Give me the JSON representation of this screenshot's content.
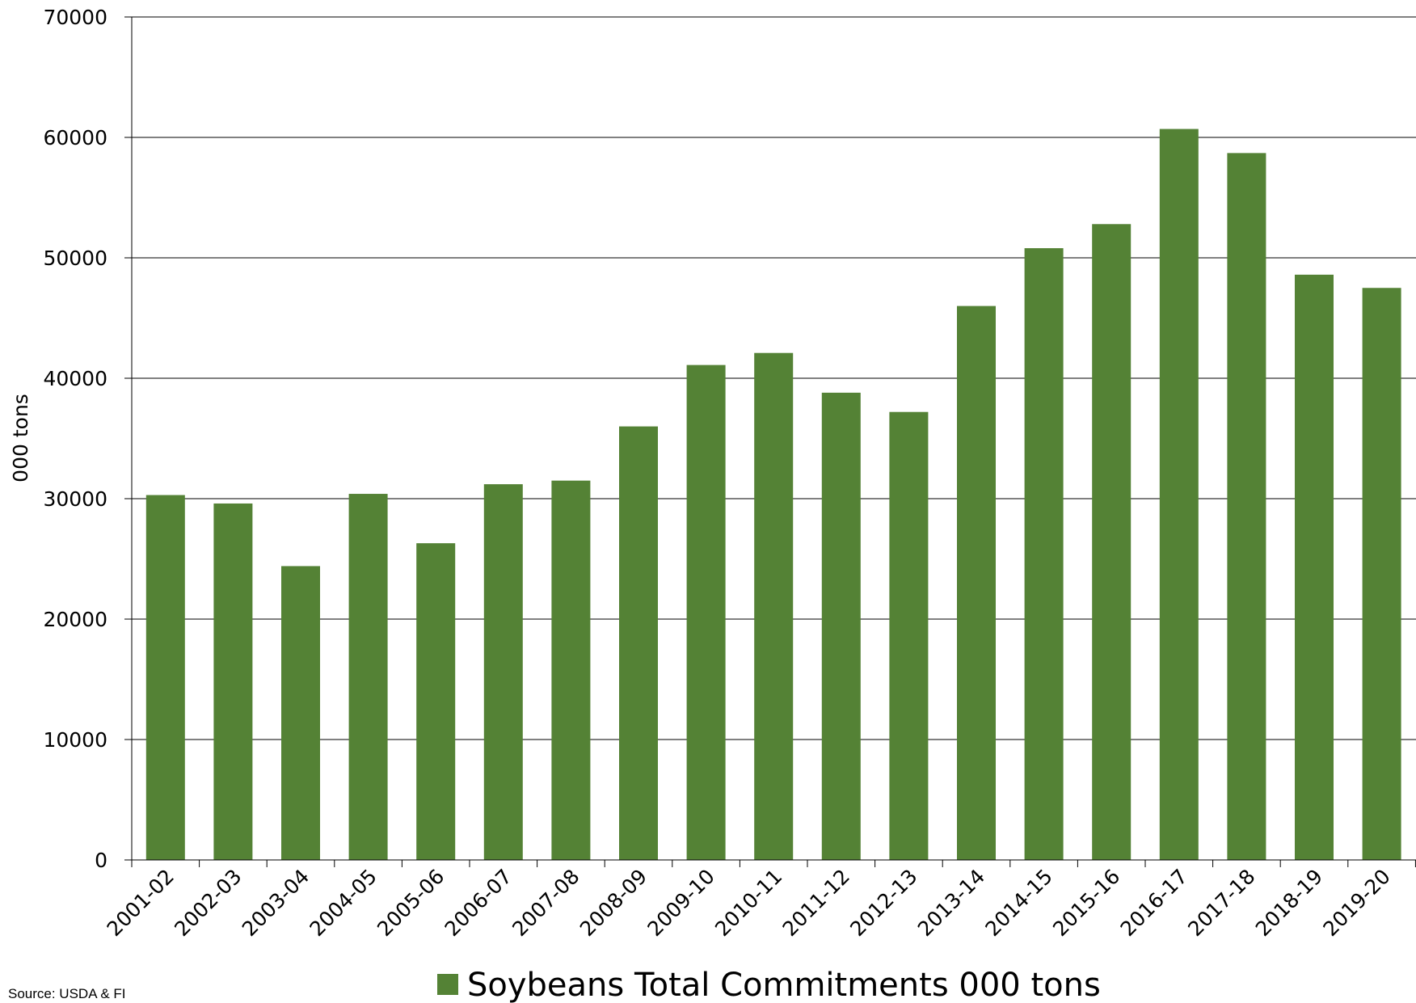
{
  "chart_data": {
    "type": "bar",
    "title": "",
    "xlabel": "",
    "ylabel": "000 tons",
    "ylim": [
      0,
      70000
    ],
    "yticks": [
      0,
      10000,
      20000,
      30000,
      40000,
      50000,
      60000,
      70000
    ],
    "grid": true,
    "legend_position": "bottom",
    "categories": [
      "2001-02",
      "2002-03",
      "2003-04",
      "2004-05",
      "2005-06",
      "2006-07",
      "2007-08",
      "2008-09",
      "2009-10",
      "2010-11",
      "2011-12",
      "2012-13",
      "2013-14",
      "2014-15",
      "2015-16",
      "2016-17",
      "2017-18",
      "2018-19",
      "2019-20"
    ],
    "series": [
      {
        "name": "Soybeans Total Commitments 000 tons",
        "color": "#548235",
        "values": [
          30300,
          29600,
          24400,
          30400,
          26300,
          31200,
          31500,
          36000,
          41100,
          42100,
          38800,
          37200,
          46000,
          50800,
          52800,
          60700,
          58700,
          48600,
          47500
        ]
      }
    ],
    "source": "Source: USDA & FI"
  }
}
